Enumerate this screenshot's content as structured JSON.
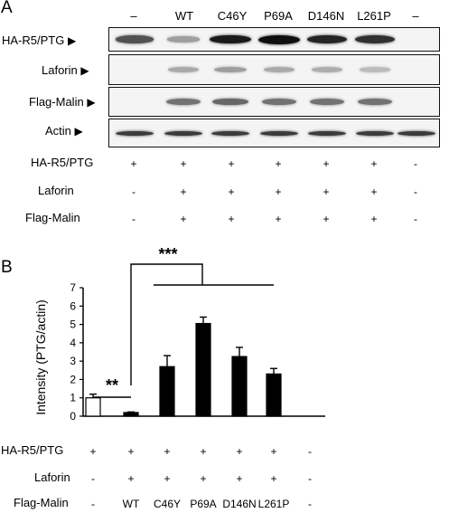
{
  "panel_a": {
    "letter": "A",
    "lanes": [
      "–",
      "WT",
      "C46Y",
      "P69A",
      "D146N",
      "L261P",
      "–"
    ],
    "blots": [
      {
        "label": "HA-R5/PTG",
        "arrow": "▶",
        "intensity": [
          0.7,
          0.35,
          0.95,
          1.0,
          0.9,
          0.85,
          0.0
        ]
      },
      {
        "label": "Laforin",
        "arrow": "▶",
        "intensity": [
          0.0,
          0.3,
          0.35,
          0.3,
          0.28,
          0.22,
          0.0
        ]
      },
      {
        "label": "Flag-Malin",
        "arrow": "▶",
        "intensity": [
          0.0,
          0.55,
          0.6,
          0.55,
          0.55,
          0.55,
          0.0
        ]
      },
      {
        "label": "Actin",
        "arrow": "▶",
        "intensity": [
          0.8,
          0.8,
          0.8,
          0.8,
          0.8,
          0.8,
          0.8
        ]
      }
    ],
    "conditions": [
      {
        "label": "HA-R5/PTG",
        "signs": [
          "+",
          "+",
          "+",
          "+",
          "+",
          "+",
          "-"
        ]
      },
      {
        "label": "Laforin",
        "signs": [
          "-",
          "+",
          "+",
          "+",
          "+",
          "+",
          "-"
        ]
      },
      {
        "label": "Flag-Malin",
        "signs": [
          "-",
          "+",
          "+",
          "+",
          "+",
          "+",
          "-"
        ]
      }
    ]
  },
  "panel_b": {
    "letter": "B",
    "conditions": [
      {
        "label": "HA-R5/PTG",
        "signs": [
          "+",
          "+",
          "+",
          "+",
          "+",
          "+",
          "-"
        ]
      },
      {
        "label": "Laforin",
        "signs": [
          "-",
          "+",
          "+",
          "+",
          "+",
          "+",
          "-"
        ]
      },
      {
        "label": "Flag-Malin",
        "signs": [
          "-",
          "WT",
          "C46Y",
          "P69A",
          "D146N",
          "L261P",
          "-"
        ]
      }
    ]
  },
  "chart_data": {
    "type": "bar",
    "title": "",
    "xlabel": "",
    "ylabel": "Intensity (PTG/actin)",
    "ylim": [
      0,
      7
    ],
    "yticks": [
      "0",
      "1",
      "2",
      "3",
      "4",
      "5",
      "6",
      "7"
    ],
    "categories": [
      "-",
      "WT",
      "C46Y",
      "P69A",
      "D146N",
      "L261P",
      "-"
    ],
    "values": [
      1.0,
      0.2,
      2.7,
      5.05,
      3.25,
      2.3,
      0
    ],
    "errors": [
      0.2,
      0.03,
      0.6,
      0.35,
      0.5,
      0.3,
      0
    ],
    "bar_fill": [
      "#ffffff",
      "#000000",
      "#000000",
      "#000000",
      "#000000",
      "#000000",
      "#000000"
    ],
    "significance": [
      {
        "label": "**",
        "from": "-",
        "to": "WT"
      },
      {
        "label": "***",
        "from": "WT",
        "to": [
          "C46Y",
          "P69A",
          "D146N",
          "L261P"
        ]
      }
    ]
  }
}
